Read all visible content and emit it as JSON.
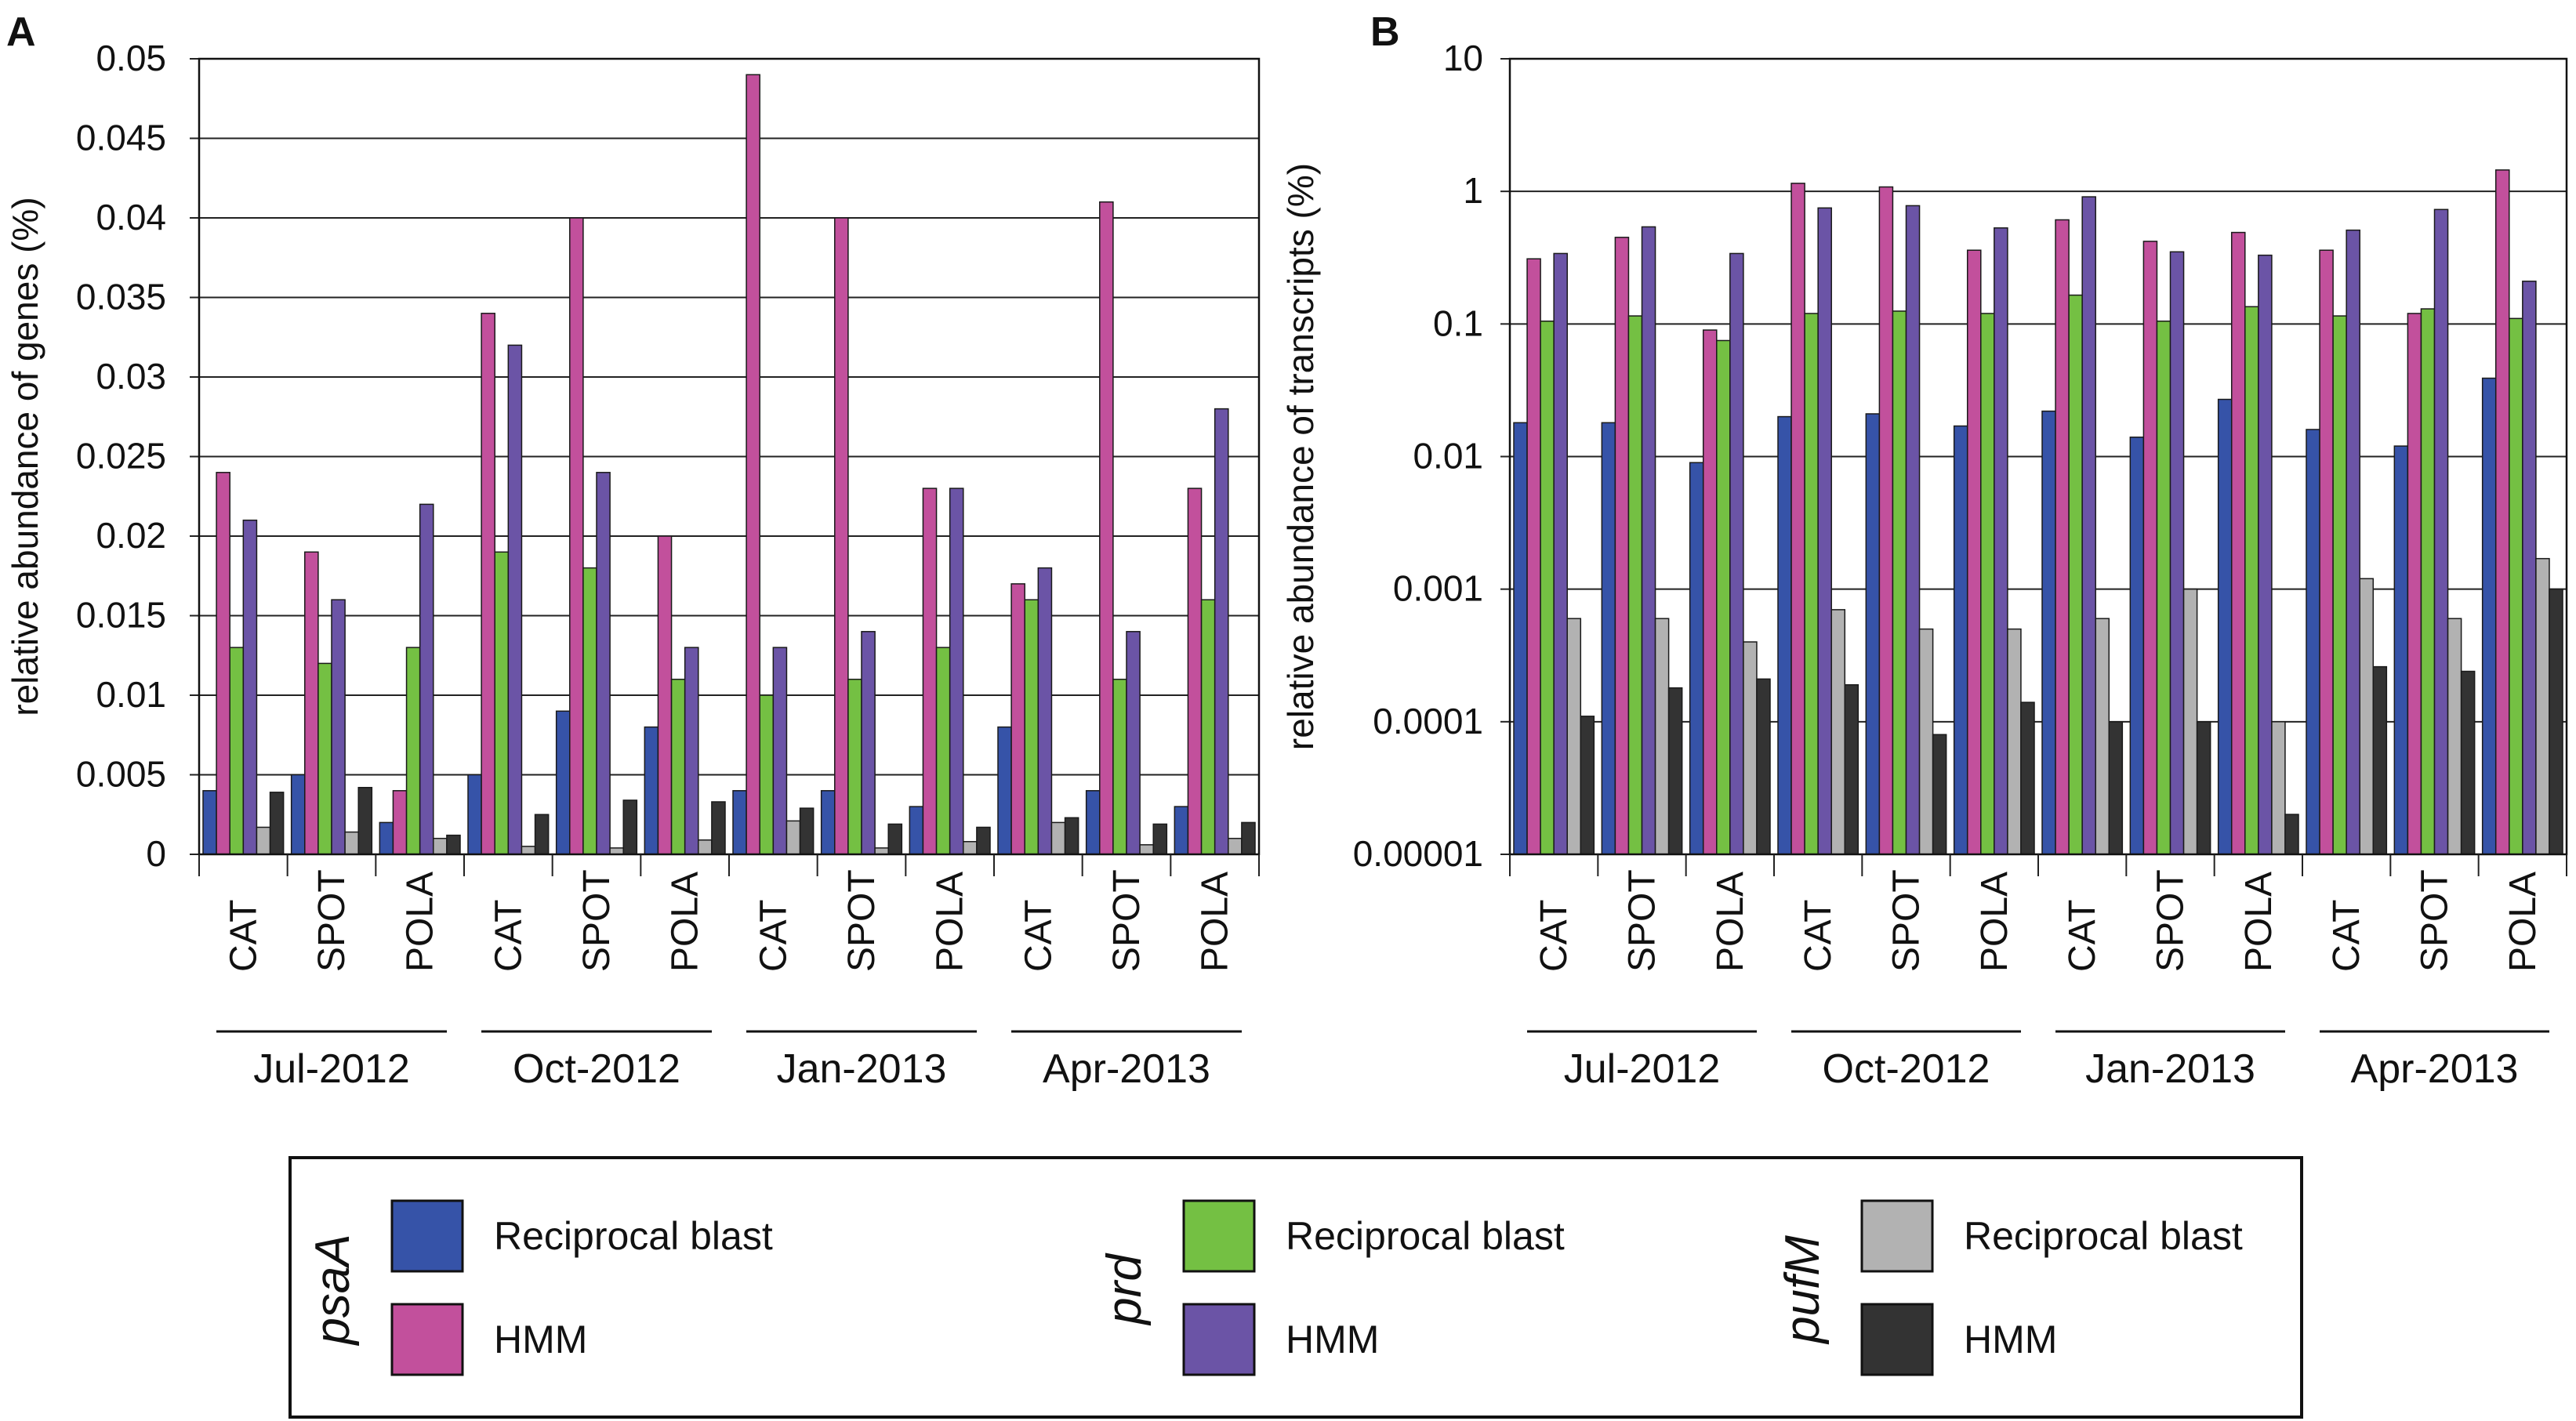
{
  "legend": {
    "groups": [
      {
        "gene": "psaA",
        "items": [
          {
            "label": "Reciprocal blast",
            "color": "#3653a8"
          },
          {
            "label": "HMM",
            "color": "#c2509c"
          }
        ]
      },
      {
        "gene": "prd",
        "items": [
          {
            "label": "Reciprocal blast",
            "color": "#74c043"
          },
          {
            "label": "HMM",
            "color": "#6b54a6"
          }
        ]
      },
      {
        "gene": "pufM",
        "items": [
          {
            "label": "Reciprocal blast",
            "color": "#b2b2b2"
          },
          {
            "label": "HMM",
            "color": "#333333"
          }
        ]
      }
    ]
  },
  "chart_data": [
    {
      "type": "bar",
      "panel_label": "A",
      "ylabel": "relative abundance of genes (%)",
      "ylim": [
        0,
        0.05
      ],
      "yticks": [
        "0",
        "0.005",
        "0.01",
        "0.015",
        "0.02",
        "0.025",
        "0.03",
        "0.035",
        "0.04",
        "0.045",
        "0.05"
      ],
      "grid": true,
      "categories": [
        "CAT",
        "SPOT",
        "POLA",
        "CAT",
        "SPOT",
        "POLA",
        "CAT",
        "SPOT",
        "POLA",
        "CAT",
        "SPOT",
        "POLA"
      ],
      "groups": [
        "Jul-2012",
        "Oct-2012",
        "Jan-2013",
        "Apr-2013"
      ],
      "series": [
        {
          "name": "psaA Reciprocal blast",
          "color": "#3653a8",
          "values": [
            0.004,
            0.005,
            0.002,
            0.005,
            0.009,
            0.008,
            0.004,
            0.004,
            0.003,
            0.008,
            0.004,
            0.003
          ]
        },
        {
          "name": "psaA HMM",
          "color": "#c2509c",
          "values": [
            0.024,
            0.019,
            0.004,
            0.034,
            0.04,
            0.02,
            0.049,
            0.04,
            0.023,
            0.017,
            0.041,
            0.023
          ]
        },
        {
          "name": "prd Reciprocal blast",
          "color": "#74c043",
          "values": [
            0.013,
            0.012,
            0.013,
            0.019,
            0.018,
            0.011,
            0.01,
            0.011,
            0.013,
            0.016,
            0.011,
            0.016
          ]
        },
        {
          "name": "prd HMM",
          "color": "#6b54a6",
          "values": [
            0.021,
            0.016,
            0.022,
            0.032,
            0.024,
            0.013,
            0.013,
            0.014,
            0.023,
            0.018,
            0.014,
            0.028
          ]
        },
        {
          "name": "pufM Reciprocal blast",
          "color": "#b2b2b2",
          "values": [
            0.0017,
            0.0014,
            0.001,
            0.0005,
            0.0004,
            0.0009,
            0.0021,
            0.0004,
            0.0008,
            0.002,
            0.0006,
            0.001
          ]
        },
        {
          "name": "pufM HMM",
          "color": "#333333",
          "values": [
            0.0039,
            0.0042,
            0.0012,
            0.0025,
            0.0034,
            0.0033,
            0.0029,
            0.0019,
            0.0017,
            0.0023,
            0.0019,
            0.002
          ]
        }
      ]
    },
    {
      "type": "bar",
      "panel_label": "B",
      "ylabel": "relative abundance of transcripts (%)",
      "yscale": "log",
      "ylim": [
        1e-05,
        10
      ],
      "yticks": [
        "0.00001",
        "0.0001",
        "0.001",
        "0.01",
        "0.1",
        "1",
        "10"
      ],
      "grid": true,
      "categories": [
        "CAT",
        "SPOT",
        "POLA",
        "CAT",
        "SPOT",
        "POLA",
        "CAT",
        "SPOT",
        "POLA",
        "CAT",
        "SPOT",
        "POLA"
      ],
      "groups": [
        "Jul-2012",
        "Oct-2012",
        "Jan-2013",
        "Apr-2013"
      ],
      "series": [
        {
          "name": "psaA Reciprocal blast",
          "color": "#3653a8",
          "values": [
            0.018,
            0.018,
            0.009,
            0.02,
            0.021,
            0.017,
            0.022,
            0.014,
            0.027,
            0.016,
            0.012,
            0.039
          ]
        },
        {
          "name": "psaA HMM",
          "color": "#c2509c",
          "values": [
            0.31,
            0.45,
            0.09,
            1.15,
            1.08,
            0.36,
            0.61,
            0.42,
            0.49,
            0.36,
            0.12,
            1.45
          ]
        },
        {
          "name": "prd Reciprocal blast",
          "color": "#74c043",
          "values": [
            0.105,
            0.115,
            0.075,
            0.12,
            0.125,
            0.12,
            0.165,
            0.105,
            0.135,
            0.115,
            0.13,
            0.11
          ]
        },
        {
          "name": "prd HMM",
          "color": "#6b54a6",
          "values": [
            0.34,
            0.54,
            0.34,
            0.75,
            0.78,
            0.53,
            0.91,
            0.35,
            0.33,
            0.51,
            0.73,
            0.21
          ]
        },
        {
          "name": "pufM Reciprocal blast",
          "color": "#b2b2b2",
          "values": [
            0.0006,
            0.0006,
            0.0004,
            0.0007,
            0.0005,
            0.0005,
            0.0006,
            0.001,
            0.0001,
            0.0012,
            0.0006,
            0.0017
          ]
        },
        {
          "name": "pufM HMM",
          "color": "#333333",
          "values": [
            0.00011,
            0.00018,
            0.00021,
            0.00019,
            8e-05,
            0.00014,
            0.0001,
            0.0001,
            2e-05,
            0.00026,
            0.00024,
            0.001
          ]
        }
      ]
    }
  ]
}
